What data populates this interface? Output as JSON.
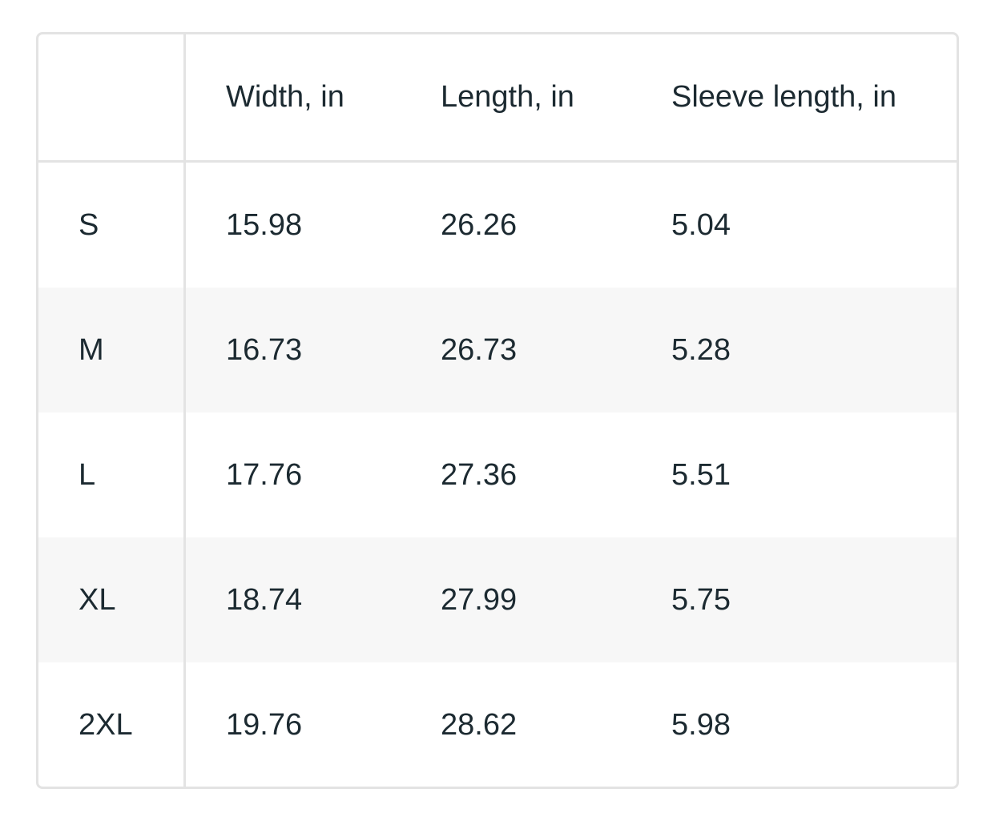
{
  "table": {
    "headers": [
      "",
      "Width, in",
      "Length, in",
      "Sleeve length, in"
    ],
    "rows": [
      [
        "S",
        "15.98",
        "26.26",
        "5.04"
      ],
      [
        "M",
        "16.73",
        "26.73",
        "5.28"
      ],
      [
        "L",
        "17.76",
        "27.36",
        "5.51"
      ],
      [
        "XL",
        "18.74",
        "27.99",
        "5.75"
      ],
      [
        "2XL",
        "19.76",
        "28.62",
        "5.98"
      ]
    ]
  },
  "colors": {
    "border": "#e3e3e3",
    "alt_row": "#f7f7f7",
    "text": "#1c2a31"
  }
}
